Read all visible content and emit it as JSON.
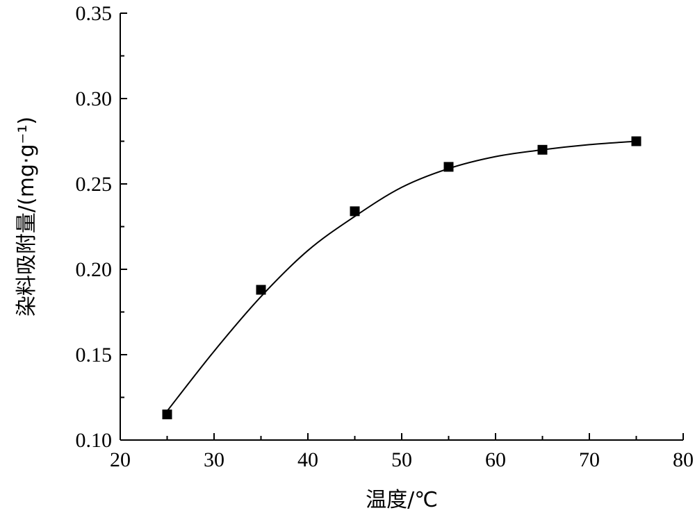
{
  "chart_data": {
    "type": "scatter",
    "xlabel": "温度/℃",
    "ylabel": "染料吸附量/(mg·g⁻¹)",
    "xlim": [
      20,
      80
    ],
    "ylim": [
      0.1,
      0.35
    ],
    "x_ticks": [
      "20",
      "30",
      "40",
      "50",
      "60",
      "70",
      "80"
    ],
    "y_ticks": [
      "0.10",
      "0.15",
      "0.20",
      "0.25",
      "0.30",
      "0.35"
    ],
    "grid": false,
    "series": [
      {
        "marker": "square",
        "color": "#000000",
        "x": [
          25,
          35,
          45,
          55,
          65,
          75
        ],
        "y": [
          0.115,
          0.188,
          0.234,
          0.26,
          0.27,
          0.275
        ]
      }
    ],
    "fit_curve": {
      "style": "smooth-line",
      "color": "#000000",
      "x": [
        25,
        30,
        35,
        40,
        45,
        50,
        55,
        60,
        65,
        70,
        75
      ],
      "y": [
        0.117,
        0.152,
        0.184,
        0.211,
        0.231,
        0.248,
        0.259,
        0.266,
        0.27,
        0.273,
        0.275
      ]
    }
  }
}
